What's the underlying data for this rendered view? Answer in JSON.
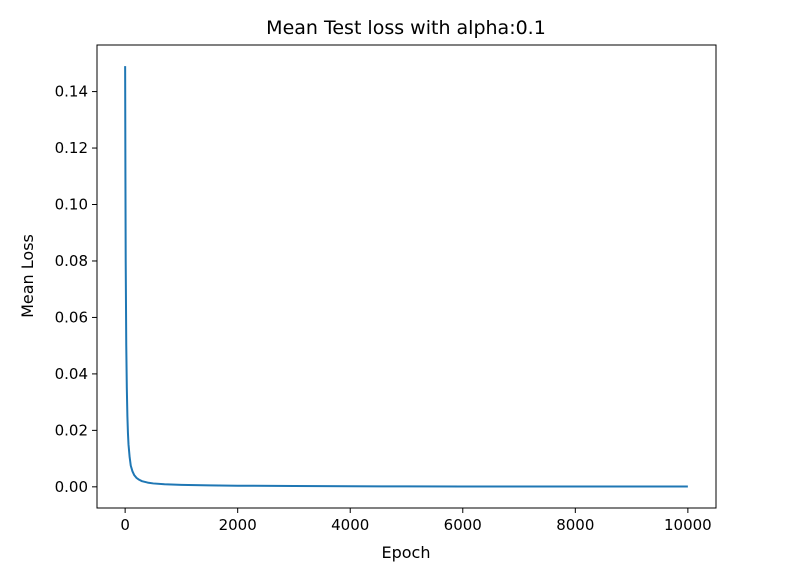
{
  "chart_data": {
    "type": "line",
    "title": "Mean Test loss with alpha:0.1",
    "xlabel": "Epoch",
    "ylabel": "Mean Loss",
    "xlim": [
      -500,
      10500
    ],
    "ylim": [
      -0.0075,
      0.1565
    ],
    "xticks": [
      0,
      2000,
      4000,
      6000,
      8000,
      10000
    ],
    "xtick_labels": [
      "0",
      "2000",
      "4000",
      "6000",
      "8000",
      "10000"
    ],
    "yticks": [
      0.0,
      0.02,
      0.04,
      0.06,
      0.08,
      0.1,
      0.12,
      0.14
    ],
    "ytick_labels": [
      "0.00",
      "0.02",
      "0.04",
      "0.06",
      "0.08",
      "0.10",
      "0.12",
      "0.14"
    ],
    "grid": false,
    "line_color": "#1f77b4",
    "series": [
      {
        "x": [
          0,
          5,
          10,
          20,
          30,
          40,
          50,
          60,
          80,
          100,
          130,
          160,
          200,
          250,
          300,
          400,
          500,
          700,
          1000,
          1500,
          2000,
          3000,
          4000,
          5000,
          6000,
          7000,
          8000,
          9000,
          10000
        ],
        "values": [
          0.149,
          0.11,
          0.08,
          0.05,
          0.035,
          0.025,
          0.019,
          0.015,
          0.0105,
          0.0075,
          0.0055,
          0.0042,
          0.0032,
          0.0025,
          0.002,
          0.0015,
          0.0012,
          0.0009,
          0.0007,
          0.0005,
          0.0004,
          0.0003,
          0.0002,
          0.00015,
          0.0001,
          0.0001,
          0.0001,
          0.0001,
          0.0001
        ]
      }
    ]
  }
}
